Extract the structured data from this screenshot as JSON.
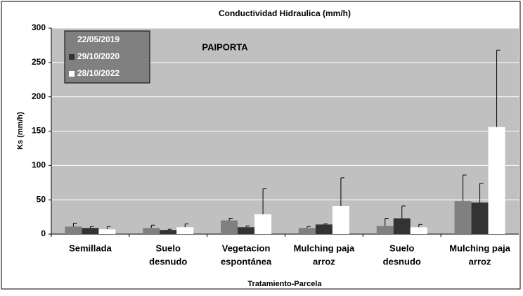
{
  "chart_data": {
    "type": "bar",
    "title": "Conductividad Hidraulica (mm/h)",
    "annotation": "PAIPORTA",
    "xlabel": "Tratamiento-Parcela",
    "ylabel": "Ks (mm/h)",
    "categories": [
      [
        "Semillada"
      ],
      [
        "Suelo",
        "desnudo"
      ],
      [
        "Vegetacion",
        "espontánea"
      ],
      [
        "Mulching paja",
        "arroz"
      ],
      [
        "Suelo",
        "desnudo"
      ],
      [
        "Mulching paja",
        "arroz"
      ]
    ],
    "series": [
      {
        "name": "22/05/2019",
        "color": "#808080",
        "values": [
          11,
          9,
          20,
          9,
          12,
          48
        ],
        "errors": [
          5,
          4,
          3,
          2,
          11,
          38
        ]
      },
      {
        "name": "29/10/2020",
        "color": "#333333",
        "values": [
          9,
          6,
          10,
          14,
          23,
          46
        ],
        "errors": [
          2,
          1,
          2,
          1,
          18,
          28
        ]
      },
      {
        "name": "28/10/2022",
        "color": "#ffffff",
        "values": [
          7,
          10,
          29,
          41,
          10,
          156
        ],
        "errors": [
          4,
          5,
          37,
          41,
          4,
          112
        ]
      }
    ],
    "ylim": [
      0,
      300
    ],
    "yticks": [
      0,
      50,
      100,
      150,
      200,
      250,
      300
    ],
    "grid": true,
    "legend": "top-left"
  }
}
